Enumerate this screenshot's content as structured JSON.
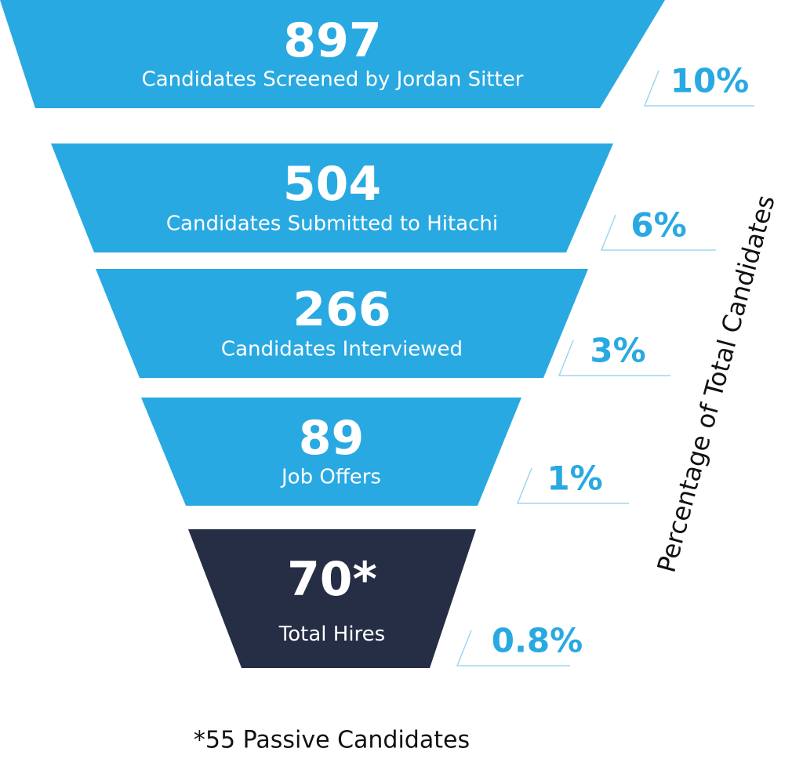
{
  "stages": [
    {
      "value": "897",
      "label": "Candidates Screened by Jordan Sitter",
      "percent": "10%"
    },
    {
      "value": "504",
      "label": "Candidates Submitted to Hitachi",
      "percent": "6%"
    },
    {
      "value": "266",
      "label": "Candidates Interviewed",
      "percent": "3%"
    },
    {
      "value": "89",
      "label": "Job Offers",
      "percent": "1%"
    },
    {
      "value": "70*",
      "label": "Total Hires",
      "percent": "0.8%"
    }
  ],
  "side_label": "Percentage of Total Candidates",
  "footnote": "*55 Passive Candidates"
}
